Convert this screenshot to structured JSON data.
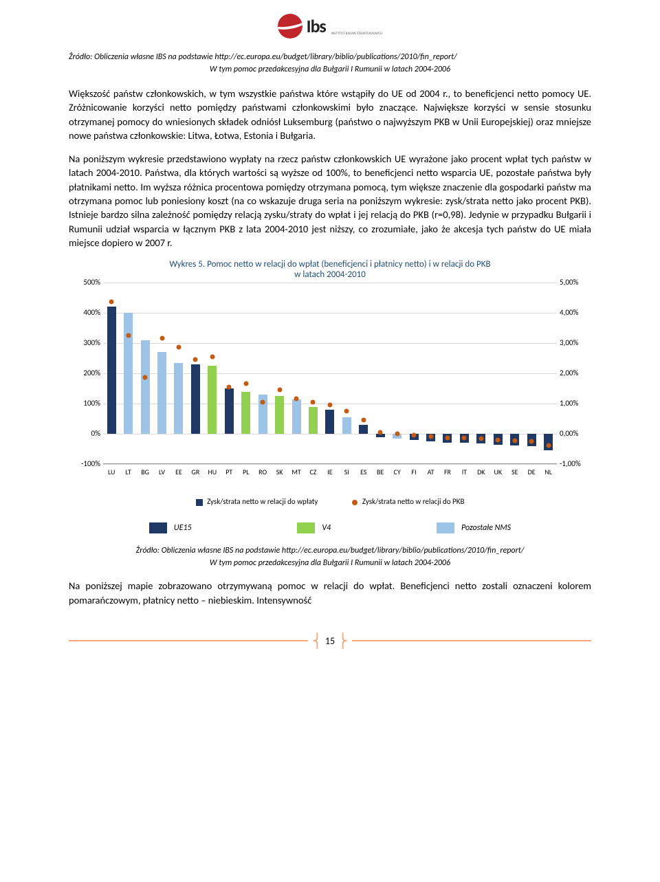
{
  "header": {
    "logo_text": "Ibs",
    "logo_sub": "INSTYTUT BADAŃ STRUKTURALNYCH"
  },
  "source_top": "Źródło: Obliczenia własne IBS na podstawie  http://ec.europa.eu/budget/library/biblio/publications/2010/fin_report/",
  "note_top": "W tym pomoc przedakcesyjna dla Bułgarii I Rumunii w latach 2004-2006",
  "para1": "Większość państw członkowskich, w tym wszystkie państwa które wstąpiły do UE od 2004 r., to beneficjenci netto pomocy UE. Zróżnicowanie korzyści netto pomiędzy państwami członkowskimi było znaczące. Największe korzyści w sensie stosunku otrzymanej pomocy do wniesionych składek odniósł Luksemburg (państwo o najwyższym PKB w Unii Europejskiej) oraz mniejsze nowe państwa członkowskie: Litwa, Łotwa, Estonia i Bułgaria.",
  "para2": "Na poniższym wykresie przedstawiono wypłaty na rzecz państw członkowskich UE wyrażone jako procent wpłat tych państw w latach 2004-2010. Państwa, dla których wartości są wyższe od 100%, to beneficjenci netto wsparcia UE, pozostałe państwa były płatnikami netto. Im wyższa różnica procentowa pomiędzy otrzymana pomocą, tym większe znaczenie dla gospodarki państw ma otrzymana pomoc lub poniesiony koszt (na co wskazuje druga seria na poniższym wykresie: zysk/strata netto jako procent PKB). Istnieje bardzo silna zależność pomiędzy relacją zysku/straty do wpłat i jej relacją do PKB (r=0,98). Jedynie w przypadku Bułgarii i Rumunii udział wsparcia w łącznym PKB z lata 2004-2010 jest niższy, co zrozumiałe, jako że akcesja tych państw do UE miała miejsce dopiero w 2007 r.",
  "chart": {
    "title_line1": "Wykres 5. Pomoc netto w relacji do wpłat (beneficjenci i płatnicy netto) i w relacji do PKB",
    "title_line2": "w latach 2004-2010",
    "title_color": "#1f4e79",
    "y_left_labels": [
      "500%",
      "400%",
      "300%",
      "200%",
      "100%",
      "0%",
      "-100%"
    ],
    "y_right_labels": [
      "5,00%",
      "4,00%",
      "3,00%",
      "2,00%",
      "1,00%",
      "0,00%",
      "-1,00%"
    ],
    "y_min": -100,
    "y_max": 500,
    "y2_min": -1,
    "y2_max": 5,
    "countries": [
      "LU",
      "LT",
      "BG",
      "LV",
      "EE",
      "GR",
      "HU",
      "PT",
      "PL",
      "RO",
      "SK",
      "MT",
      "CZ",
      "IE",
      "SI",
      "ES",
      "BE",
      "CY",
      "FI",
      "AT",
      "FR",
      "IT",
      "DK",
      "UK",
      "SE",
      "DE",
      "NL"
    ],
    "bars": [
      420,
      400,
      310,
      270,
      235,
      230,
      225,
      150,
      140,
      130,
      125,
      115,
      90,
      80,
      55,
      30,
      -10,
      -15,
      -20,
      -25,
      -28,
      -30,
      -32,
      -35,
      -38,
      -40,
      -55
    ],
    "bar_group": [
      "ue15",
      "nms",
      "nms",
      "nms",
      "nms",
      "ue15",
      "v4",
      "ue15",
      "v4",
      "nms",
      "v4",
      "nms",
      "v4",
      "ue15",
      "nms",
      "ue15",
      "ue15",
      "nms",
      "ue15",
      "ue15",
      "ue15",
      "ue15",
      "ue15",
      "ue15",
      "ue15",
      "ue15",
      "ue15"
    ],
    "markers": [
      4.2,
      3.1,
      1.7,
      3.0,
      2.7,
      2.3,
      2.4,
      1.4,
      1.5,
      0.9,
      1.3,
      1.0,
      0.9,
      0.8,
      0.6,
      0.3,
      -0.1,
      -0.15,
      -0.2,
      -0.25,
      -0.28,
      -0.3,
      -0.32,
      -0.35,
      -0.38,
      -0.4,
      -0.55
    ],
    "marker_color": "#c55a11",
    "colors": {
      "ue15": "#1f3864",
      "v4": "#92d050",
      "nms": "#9dc3e6"
    },
    "grid_color": "#d9d9d9",
    "legend_bar_label": "Zysk/strata netto w relacji do wpłaty",
    "legend_dot_label": "Zysk/strata netto w relacji do PKB"
  },
  "group_legend": [
    {
      "color": "#1f3864",
      "label": "UE15"
    },
    {
      "color": "#92d050",
      "label": "V4"
    },
    {
      "color": "#9dc3e6",
      "label": "Pozostałe NMS"
    }
  ],
  "source_bottom": "Źródło: Obliczenia własne IBS na podstawie  http://ec.europa.eu/budget/library/biblio/publications/2010/fin_report/",
  "note_bottom": "W tym pomoc przedakcesyjna dla Bułgarii I Rumunii w latach 2004-2006",
  "para3": "Na poniższej mapie zobrazowano otrzymywaną pomoc w relacji do wpłat. Beneficjenci netto zostali oznaczeni kolorem pomarańczowym, płatnicy netto – niebieskim. Intensywność",
  "footer": {
    "page_number": "15",
    "line_color": "#f4a77a"
  }
}
